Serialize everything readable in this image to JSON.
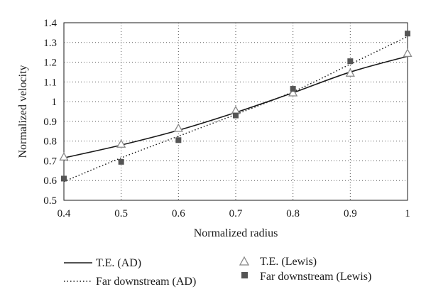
{
  "chart_data": {
    "type": "line",
    "title": "",
    "xlabel": "Normalized radius",
    "ylabel": "Normalized velocity",
    "xlim": [
      0.4,
      1.0
    ],
    "ylim": [
      0.5,
      1.4
    ],
    "x_ticks": [
      0.4,
      0.5,
      0.6,
      0.7,
      0.8,
      0.9,
      1.0
    ],
    "x_tick_labels": [
      "0.4",
      "0.5",
      "0.6",
      "0.7",
      "0.8",
      "0.9",
      "1"
    ],
    "y_ticks": [
      0.5,
      0.6,
      0.7,
      0.8,
      0.9,
      1.0,
      1.1,
      1.2,
      1.3,
      1.4
    ],
    "y_tick_labels": [
      "0.5",
      "0.6",
      "0.7",
      "0.8",
      "0.9",
      "1",
      "1.1",
      "1.2",
      "1.3",
      "1.4"
    ],
    "grid": "dotted",
    "legend_position": "bottom",
    "series": [
      {
        "name": "T.E. (AD)",
        "style": "solid-line",
        "color": "#1a1a1a",
        "x": [
          0.4,
          0.5,
          0.6,
          0.7,
          0.8,
          0.9,
          1.0
        ],
        "y": [
          0.715,
          0.78,
          0.855,
          0.945,
          1.045,
          1.15,
          1.23
        ]
      },
      {
        "name": "Far downstream (AD)",
        "style": "dotted-line",
        "color": "#1a1a1a",
        "x": [
          0.4,
          0.5,
          0.6,
          0.7,
          0.8,
          0.9,
          1.0
        ],
        "y": [
          0.595,
          0.715,
          0.825,
          0.935,
          1.05,
          1.19,
          1.33
        ]
      },
      {
        "name": "T.E. (Lewis)",
        "style": "open-triangle",
        "color": "#888888",
        "x": [
          0.4,
          0.5,
          0.6,
          0.7,
          0.8,
          0.9,
          1.0
        ],
        "y": [
          0.72,
          0.785,
          0.865,
          0.955,
          1.045,
          1.145,
          1.245
        ]
      },
      {
        "name": "Far downstream (Lewis)",
        "style": "filled-square",
        "color": "#555555",
        "x": [
          0.4,
          0.5,
          0.6,
          0.7,
          0.8,
          0.9,
          1.0
        ],
        "y": [
          0.61,
          0.695,
          0.805,
          0.93,
          1.065,
          1.205,
          1.345
        ]
      }
    ]
  }
}
